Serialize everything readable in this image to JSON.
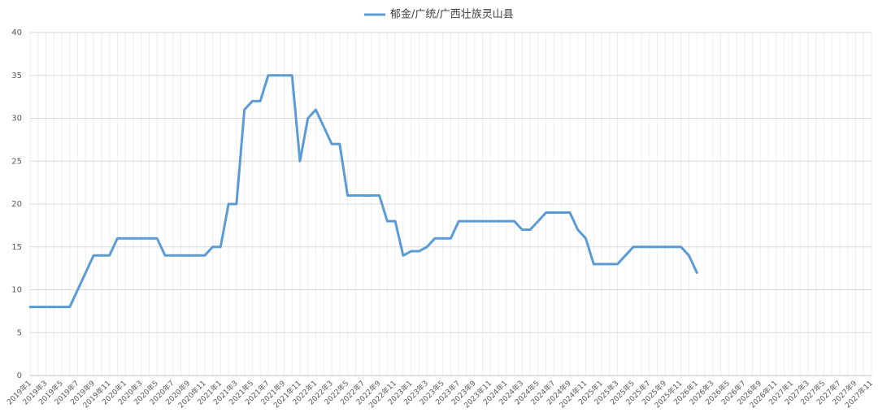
{
  "chart_data": {
    "type": "line",
    "categories": [
      "2019年1",
      null,
      "2019年3",
      null,
      "2019年5",
      null,
      "2019年7",
      null,
      "2019年9",
      null,
      "2019年11",
      null,
      "2020年1",
      null,
      "2020年3",
      null,
      "2020年5",
      null,
      "2020年7",
      null,
      "2020年9",
      null,
      "2020年11",
      null,
      "2021年1",
      null,
      "2021年3",
      null,
      "2021年5",
      null,
      "2021年7",
      null,
      "2021年9",
      null,
      "2021年11",
      null,
      "2022年1",
      null,
      "2022年3",
      null,
      "2022年5",
      null,
      "2022年7",
      null,
      "2022年9",
      null,
      "2022年11",
      null,
      "2023年1",
      null,
      "2023年3",
      null,
      "2023年5",
      null,
      "2023年7",
      null,
      "2023年9",
      null,
      "2023年11",
      null,
      "2024年1",
      null,
      "2024年3",
      null,
      "2024年5",
      null,
      "2024年7",
      null,
      "2024年9",
      null,
      "2024年11",
      null,
      "2025年1",
      null,
      "2025年3",
      null,
      "2025年5",
      null,
      "2025年7",
      null,
      "2025年9",
      null,
      "2025年11",
      null,
      "2026年1",
      null,
      "2026年3",
      null,
      "2026年5",
      null,
      "2026年7",
      null,
      "2026年9",
      null,
      "2026年11",
      null,
      "2027年1",
      null,
      "2027年3",
      null,
      "2027年5",
      null,
      "2027年7",
      null,
      "2027年9",
      null,
      "2027年11"
    ],
    "series": [
      {
        "name": "郁金/广统/广西壮族灵山县",
        "color": "#5b9bd5",
        "values": [
          8,
          8,
          8,
          8,
          8,
          8,
          10,
          12,
          14,
          14,
          14,
          16,
          16,
          16,
          16,
          16,
          16,
          14,
          14,
          14,
          14,
          14,
          14,
          15,
          15,
          20,
          20,
          31,
          32,
          32,
          35,
          35,
          35,
          35,
          25,
          30,
          31,
          29,
          27,
          27,
          21,
          21,
          21,
          21,
          21,
          18,
          18,
          14,
          14.5,
          14.5,
          15,
          16,
          16,
          16,
          18,
          18,
          18,
          18,
          18,
          18,
          18,
          18,
          17,
          17,
          18,
          19,
          19,
          19,
          19,
          17,
          16,
          13,
          13,
          13,
          13,
          14,
          15,
          15,
          15,
          15,
          15,
          15,
          15,
          14,
          12,
          null,
          null,
          null,
          null,
          null,
          null,
          null,
          null,
          null,
          null,
          null,
          null,
          null,
          null,
          null,
          null,
          null,
          null,
          null,
          null,
          null,
          null
        ]
      }
    ],
    "ylim": [
      0,
      40
    ],
    "yticks": [
      0,
      5,
      10,
      15,
      20,
      25,
      30,
      35,
      40
    ],
    "grid": true,
    "legend": "top"
  }
}
